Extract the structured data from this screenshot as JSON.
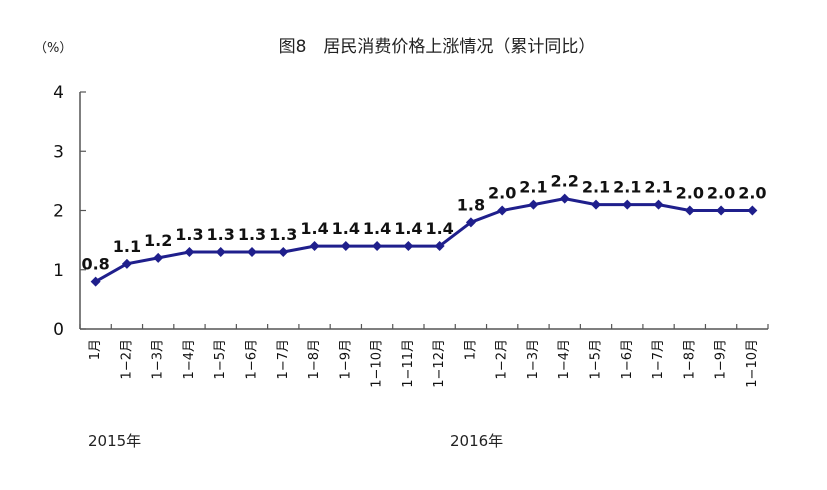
{
  "chart_data": {
    "type": "line",
    "title": "图8　居民消费价格上涨情况（累计同比）",
    "unit": "（%）",
    "ylim": [
      0,
      4
    ],
    "yticks": [
      "0",
      "1",
      "2",
      "3",
      "4"
    ],
    "categories": [
      "1月",
      "1−2月",
      "1−3月",
      "1−4月",
      "1−5月",
      "1−6月",
      "1−7月",
      "1−8月",
      "1−9月",
      "1−10月",
      "1−11月",
      "1−12月",
      "1月",
      "1−2月",
      "1−3月",
      "1−4月",
      "1−5月",
      "1−6月",
      "1−7月",
      "1−8月",
      "1−9月",
      "1−10月"
    ],
    "series": [
      {
        "values": [
          0.8,
          1.1,
          1.2,
          1.3,
          1.3,
          1.3,
          1.3,
          1.4,
          1.4,
          1.4,
          1.4,
          1.4,
          1.8,
          2.0,
          2.1,
          2.2,
          2.1,
          2.1,
          2.1,
          2.0,
          2.0,
          2.0
        ],
        "labels": [
          "0.8",
          "1.1",
          "1.2",
          "1.3",
          "1.3",
          "1.3",
          "1.3",
          "1.4",
          "1.4",
          "1.4",
          "1.4",
          "1.4",
          "1.8",
          "2.0",
          "2.1",
          "2.2",
          "2.1",
          "2.1",
          "2.1",
          "2.0",
          "2.0",
          "2.0"
        ]
      }
    ],
    "year_labels": [
      {
        "text": "2015年",
        "start_index": 0
      },
      {
        "text": "2016年",
        "start_index": 12
      }
    ],
    "grid": false,
    "colors": {
      "line": "#1f1f8c",
      "axis": "#555555"
    }
  }
}
